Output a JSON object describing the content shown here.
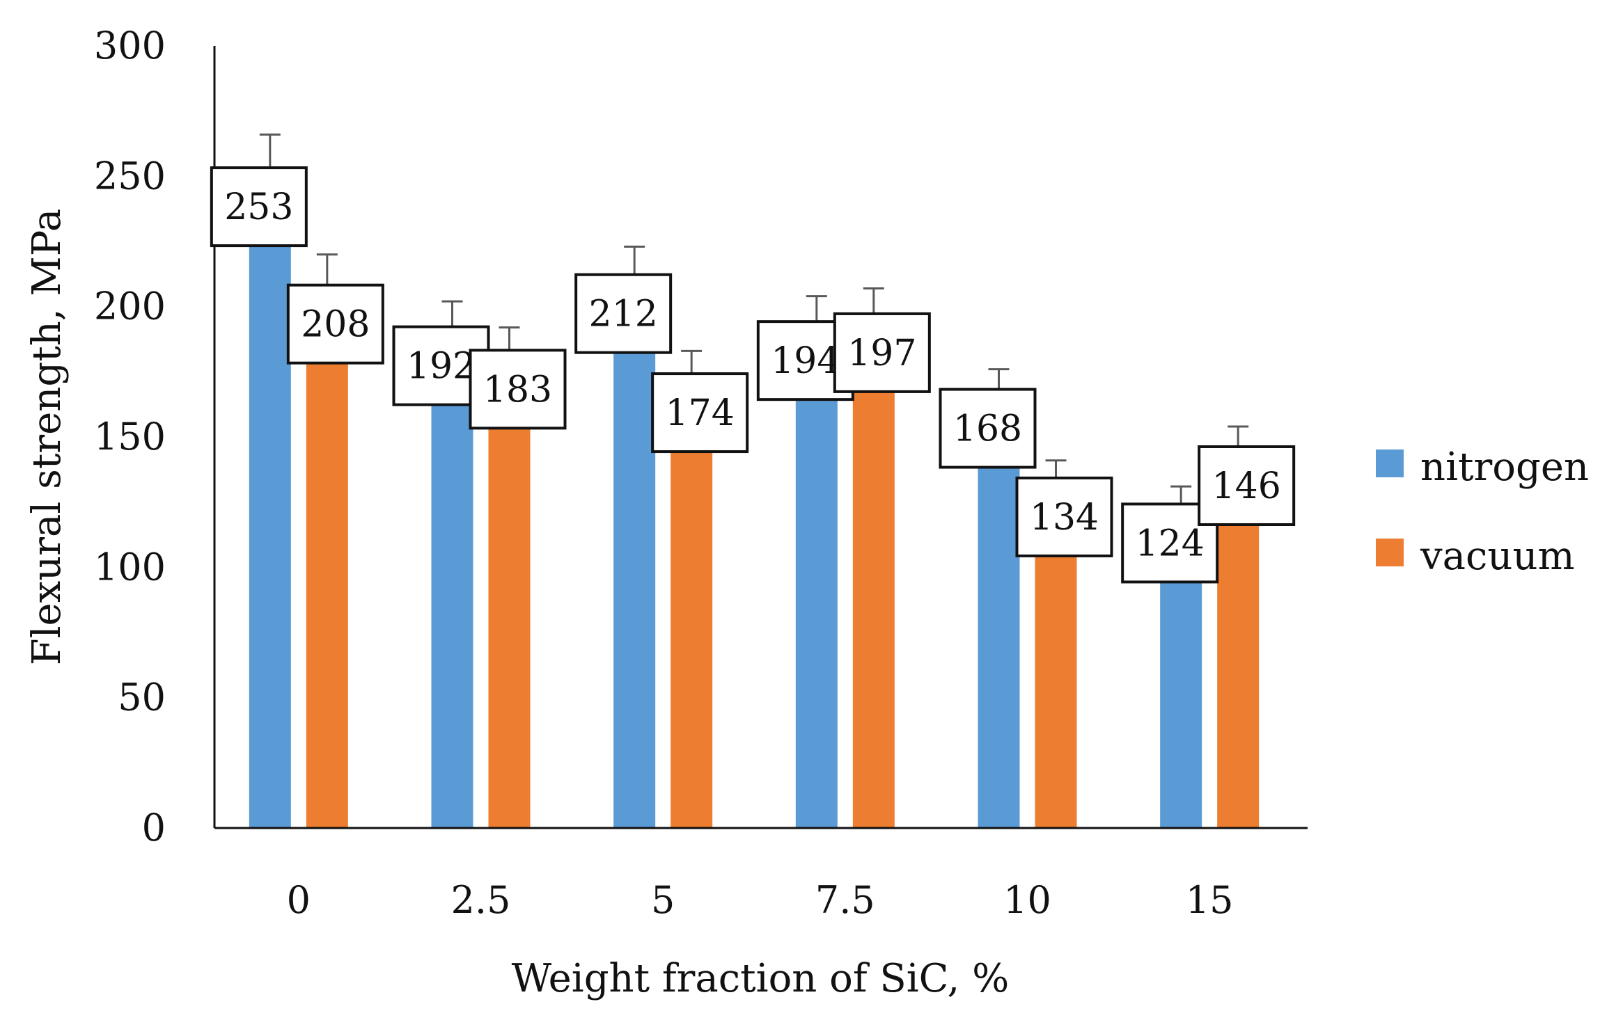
{
  "chart_data": {
    "type": "bar",
    "title": "",
    "xlabel": "Weight fraction of SiC, %",
    "ylabel": "Flexural strength, MPa",
    "ylim": [
      0,
      300
    ],
    "yticks": [
      0,
      50,
      100,
      150,
      200,
      250,
      300
    ],
    "categories": [
      "0",
      "2.5",
      "5",
      "7.5",
      "10",
      "15"
    ],
    "series": [
      {
        "name": "nitrogen",
        "color": "#5B9BD5",
        "values": [
          253,
          192,
          212,
          194,
          168,
          124
        ],
        "errors": [
          13,
          10,
          11,
          10,
          8,
          7
        ],
        "labels": [
          "253",
          "192",
          "212",
          "194",
          "168",
          "124"
        ]
      },
      {
        "name": "vacuum",
        "color": "#ED7D31",
        "values": [
          208,
          183,
          174,
          197,
          134,
          146
        ],
        "errors": [
          12,
          9,
          9,
          10,
          7,
          8
        ],
        "labels": [
          "208",
          "183",
          "174",
          "197",
          "134",
          "146"
        ]
      }
    ],
    "grid": false,
    "legend_position": "right"
  }
}
